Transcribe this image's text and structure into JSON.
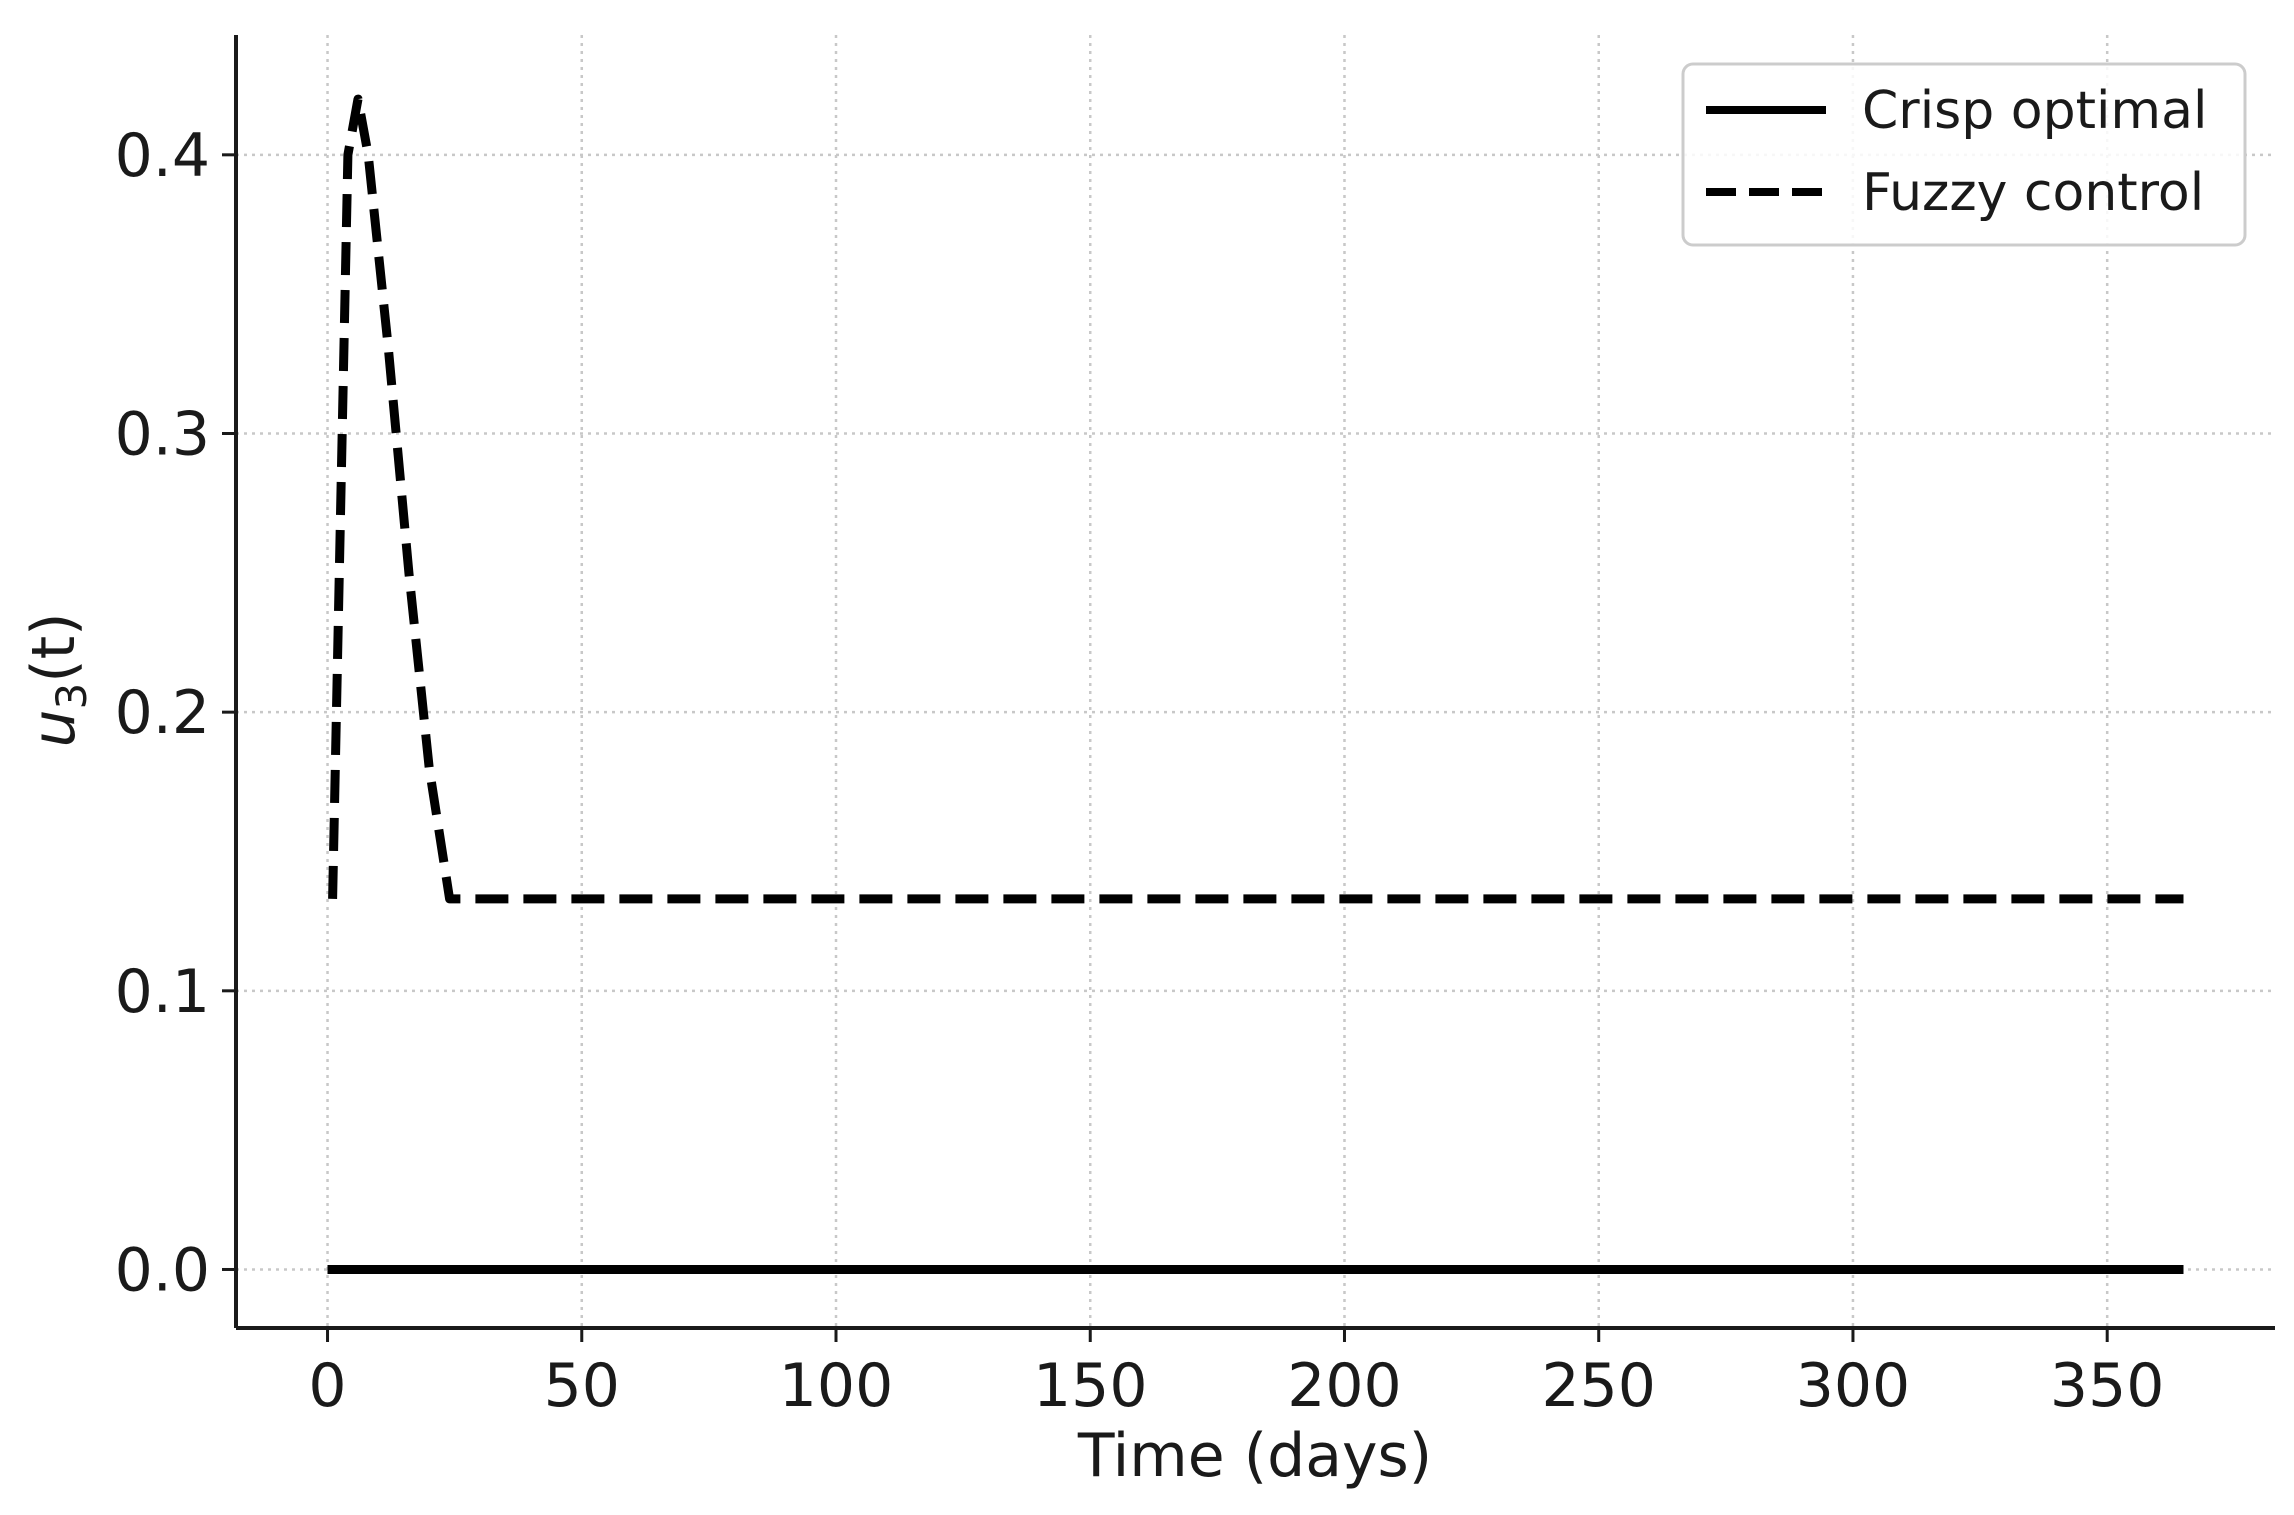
{
  "chart_data": {
    "type": "line",
    "title": "",
    "xlabel": "Time (days)",
    "ylabel": "u₃(t)",
    "ylabel_parts": {
      "base": "u",
      "subscript": "3",
      "suffix": "(t)"
    },
    "xlim": [
      -18,
      383
    ],
    "ylim": [
      -0.021,
      0.443
    ],
    "xticks": [
      0,
      50,
      100,
      150,
      200,
      250,
      300,
      350
    ],
    "xtick_labels": [
      "0",
      "50",
      "100",
      "150",
      "200",
      "250",
      "300",
      "350"
    ],
    "yticks": [
      0.0,
      0.1,
      0.2,
      0.3,
      0.4
    ],
    "ytick_labels": [
      "0.0",
      "0.1",
      "0.2",
      "0.3",
      "0.4"
    ],
    "grid": true,
    "legend_position": "top-right",
    "series": [
      {
        "name": "Crisp optimal",
        "style": "solid",
        "color": "#000000",
        "x": [
          0,
          365
        ],
        "y": [
          0.0,
          0.0
        ]
      },
      {
        "name": "Fuzzy control",
        "style": "dashed",
        "color": "#000000",
        "x": [
          1,
          4,
          6,
          8,
          12,
          16,
          20,
          24,
          30,
          50,
          100,
          150,
          200,
          250,
          300,
          365
        ],
        "y": [
          0.133,
          0.4,
          0.42,
          0.4,
          0.33,
          0.25,
          0.18,
          0.133,
          0.133,
          0.133,
          0.133,
          0.133,
          0.133,
          0.133,
          0.133,
          0.133
        ]
      }
    ]
  }
}
